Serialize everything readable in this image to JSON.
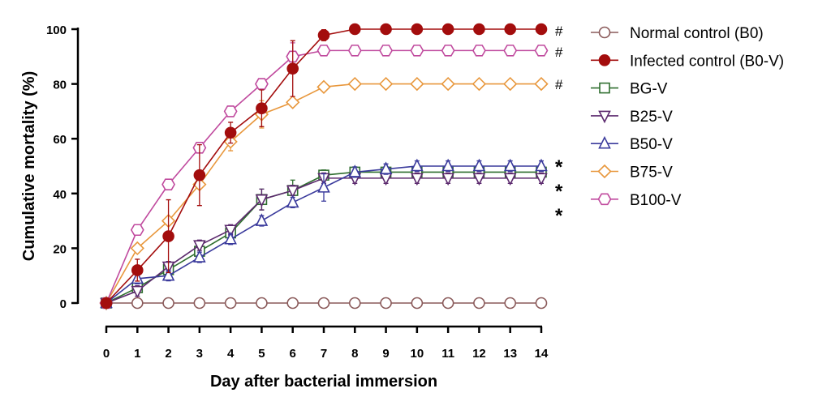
{
  "chart_data": {
    "type": "line",
    "title": "",
    "xlabel": "Day after bacterial immersion",
    "ylabel": "Cumulative mortality (%)",
    "xlim": [
      0,
      14
    ],
    "ylim": [
      0,
      100
    ],
    "x": [
      0,
      1,
      2,
      3,
      4,
      5,
      6,
      7,
      8,
      9,
      10,
      11,
      12,
      13,
      14
    ],
    "xticks": [
      "0",
      "1",
      "2",
      "3",
      "4",
      "5",
      "6",
      "7",
      "8",
      "9",
      "10",
      "11",
      "12",
      "13",
      "14"
    ],
    "yticks": [
      "0",
      "20",
      "40",
      "60",
      "80",
      "100"
    ],
    "legend_position": "right",
    "series": [
      {
        "name": "Normal control (B0)",
        "color": "#8a5a5a",
        "marker": "circle-open",
        "values": [
          0,
          0,
          0,
          0,
          0,
          0,
          0,
          0,
          0,
          0,
          0,
          0,
          0,
          0,
          0
        ],
        "errors": [
          0,
          0,
          0,
          0,
          0,
          0,
          0,
          0,
          0,
          0,
          0,
          0,
          0,
          0,
          0
        ],
        "annotation": ""
      },
      {
        "name": "Infected control (B0-V)",
        "color": "#a30d0d",
        "marker": "circle-filled",
        "values": [
          0,
          12,
          24.4,
          46.7,
          62.2,
          71.1,
          85.6,
          97.8,
          100,
          100,
          100,
          100,
          100,
          100,
          100
        ],
        "errors": [
          0,
          4,
          13.3,
          11.1,
          3.8,
          6.7,
          10.2,
          2,
          0,
          0,
          0,
          0,
          0,
          0,
          0
        ],
        "annotation": "#"
      },
      {
        "name": "BG-V",
        "color": "#2f6e2f",
        "marker": "square-open",
        "values": [
          0,
          5.6,
          12.2,
          18.9,
          25.6,
          37.8,
          41.1,
          46.7,
          47.8,
          47.8,
          47.8,
          47.8,
          47.8,
          47.8,
          47.8
        ],
        "errors": [
          0,
          1.9,
          1.9,
          1.9,
          1.9,
          3.8,
          3.8,
          1.9,
          1.9,
          1.9,
          1.9,
          1.9,
          1.9,
          1.9,
          1.9
        ],
        "annotation": "*"
      },
      {
        "name": "B25-V",
        "color": "#5c2a6e",
        "marker": "triangle-down-open",
        "values": [
          0,
          4.4,
          13.3,
          21.1,
          26.7,
          37.8,
          41.1,
          45.6,
          45.6,
          45.6,
          45.6,
          45.6,
          45.6,
          45.6,
          45.6
        ],
        "errors": [
          0,
          1.9,
          1.9,
          1.9,
          1.9,
          3.8,
          1.9,
          1.9,
          1.9,
          1.9,
          1.9,
          1.9,
          1.9,
          1.9,
          1.9
        ],
        "annotation": "*"
      },
      {
        "name": "B50-V",
        "color": "#3a3a9c",
        "marker": "triangle-up-open",
        "values": [
          0,
          8.9,
          10,
          16.7,
          23.3,
          30,
          36.7,
          42.2,
          47.8,
          48.9,
          50,
          50,
          50,
          50,
          50
        ],
        "errors": [
          0,
          1.9,
          1.9,
          1.9,
          1.9,
          1.9,
          1.9,
          5,
          1.9,
          1.9,
          1.9,
          1.9,
          1.9,
          1.9,
          1.9
        ],
        "annotation": "*"
      },
      {
        "name": "B75-V",
        "color": "#e8973c",
        "marker": "diamond-open",
        "values": [
          0,
          20,
          30,
          43.3,
          58.9,
          68.9,
          73.3,
          78.9,
          80,
          80,
          80,
          80,
          80,
          80,
          80
        ],
        "errors": [
          0,
          0,
          0,
          0,
          3.3,
          5,
          0,
          0,
          0,
          0,
          0,
          0,
          0,
          0,
          0
        ],
        "annotation": "#"
      },
      {
        "name": "B100-V",
        "color": "#c04a9e",
        "marker": "hexagon-open",
        "values": [
          0,
          26.7,
          43.3,
          56.7,
          70,
          80,
          90,
          92.2,
          92.2,
          92.2,
          92.2,
          92.2,
          92.2,
          92.2,
          92.2
        ],
        "errors": [
          0,
          0,
          0,
          0,
          0,
          0,
          5,
          0,
          0,
          0,
          0,
          0,
          0,
          0,
          0
        ],
        "annotation": "#"
      }
    ]
  }
}
